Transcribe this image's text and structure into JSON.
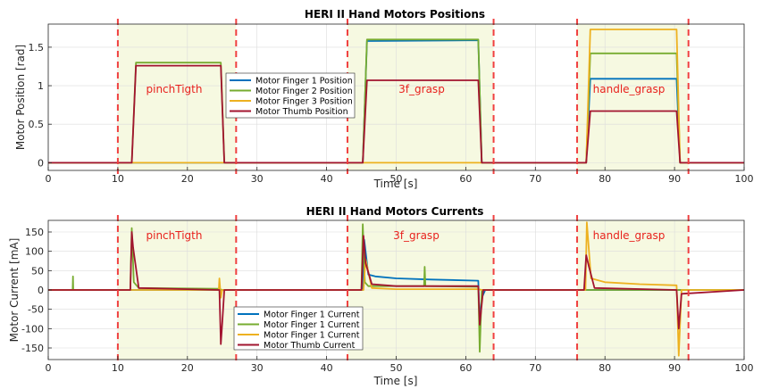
{
  "chart_data": [
    {
      "type": "line",
      "title": "HERI II Hand Motors Positions",
      "xlabel": "Time [s]",
      "ylabel": "Motor Position [rad]",
      "xlim": [
        0,
        100
      ],
      "ylim": [
        -0.1,
        1.8
      ],
      "xticks": [
        "0",
        "10",
        "20",
        "30",
        "40",
        "50",
        "60",
        "70",
        "80",
        "90",
        "100"
      ],
      "yticks": [
        "0",
        "0.5",
        "1",
        "1.5"
      ],
      "ytick_values": [
        0,
        0.5,
        1,
        1.5
      ],
      "grid": true,
      "legend_position": "center-left",
      "phase_regions": [
        {
          "label": "pinchTigth",
          "x_start": 10,
          "x_end": 27
        },
        {
          "label": "3f_grasp",
          "x_start": 43,
          "x_end": 64
        },
        {
          "label": "handle_grasp",
          "x_start": 76,
          "x_end": 92
        }
      ],
      "series": [
        {
          "name": "Motor Finger 1 Position",
          "color": "#0072bd",
          "x": [
            0,
            12,
            12.6,
            24.8,
            25.3,
            45.2,
            45.8,
            61.8,
            62.3,
            77.3,
            77.9,
            90.3,
            90.8,
            100
          ],
          "y": [
            0,
            0,
            0,
            0,
            0,
            0,
            1.58,
            1.59,
            0,
            0,
            1.09,
            1.09,
            0,
            0
          ]
        },
        {
          "name": "Motor Finger 2 Position",
          "color": "#77ac30",
          "x": [
            0,
            12,
            12.6,
            24.8,
            25.3,
            45.2,
            45.8,
            61.8,
            62.3,
            77.3,
            77.9,
            90.3,
            90.8,
            100
          ],
          "y": [
            0,
            0,
            1.3,
            1.3,
            0,
            0,
            1.6,
            1.6,
            0,
            0,
            1.42,
            1.42,
            0,
            0
          ]
        },
        {
          "name": "Motor Finger 3 Position",
          "color": "#edb120",
          "x": [
            0,
            12,
            12.6,
            24.8,
            25.3,
            45.2,
            45.8,
            61.8,
            62.3,
            77.3,
            77.9,
            90.3,
            90.8,
            100
          ],
          "y": [
            0,
            0,
            0,
            0,
            0,
            0,
            0,
            0,
            0,
            0,
            1.73,
            1.73,
            0,
            0
          ]
        },
        {
          "name": "Motor Thumb Position",
          "color": "#a2142f",
          "x": [
            0,
            12,
            12.6,
            24.8,
            25.3,
            45.2,
            45.8,
            61.8,
            62.3,
            77.3,
            77.9,
            90.3,
            90.8,
            100
          ],
          "y": [
            0,
            0,
            1.26,
            1.26,
            0,
            0,
            1.07,
            1.07,
            0,
            0,
            0.67,
            0.67,
            0,
            0
          ]
        }
      ]
    },
    {
      "type": "line",
      "title": "HERI II Hand Motors Currents",
      "xlabel": "Time [s]",
      "ylabel": "Motor Current [mA]",
      "xlim": [
        0,
        100
      ],
      "ylim": [
        -180,
        180
      ],
      "xticks": [
        "0",
        "10",
        "20",
        "30",
        "40",
        "50",
        "60",
        "70",
        "80",
        "90",
        "100"
      ],
      "yticks": [
        "150",
        "100",
        "50",
        "0",
        "-50",
        "-100",
        "-150"
      ],
      "ytick_values": [
        150,
        100,
        50,
        0,
        -50,
        -100,
        -150
      ],
      "grid": true,
      "legend_position": "bottom-left",
      "phase_regions": [
        {
          "label": "pinchTigth",
          "x_start": 10,
          "x_end": 27
        },
        {
          "label": "3f_grasp",
          "x_start": 43,
          "x_end": 64
        },
        {
          "label": "handle_grasp",
          "x_start": 76,
          "x_end": 92
        }
      ],
      "series": [
        {
          "name": "Motor Finger 1 Current",
          "color": "#0072bd",
          "x": [
            0,
            45.2,
            45.4,
            46,
            47,
            50,
            55,
            61.8,
            62,
            62.3,
            62.8,
            100
          ],
          "y": [
            0,
            0,
            130,
            40,
            35,
            30,
            27,
            24,
            -80,
            -20,
            0,
            0
          ]
        },
        {
          "name": "Motor Finger 1 Current",
          "color": "#77ac30",
          "x": [
            0,
            3.5,
            3.55,
            3.6,
            11.8,
            12,
            12.3,
            13,
            24.5,
            25,
            45,
            45.2,
            45.5,
            46,
            54,
            54.1,
            54.2,
            61.8,
            62,
            62.3,
            100
          ],
          "y": [
            0,
            0,
            35,
            0,
            0,
            160,
            20,
            5,
            3,
            0,
            0,
            170,
            20,
            10,
            10,
            60,
            10,
            8,
            -160,
            0,
            0
          ]
        },
        {
          "name": "Motor Finger 1 Current",
          "color": "#edb120",
          "x": [
            0,
            24.5,
            24.6,
            24.8,
            25,
            45.3,
            45.6,
            46.5,
            50,
            61.8,
            62.3,
            77.2,
            77.4,
            78,
            80,
            85,
            90.3,
            90.6,
            91,
            100
          ],
          "y": [
            0,
            0,
            30,
            -20,
            0,
            0,
            80,
            5,
            2,
            2,
            0,
            0,
            175,
            30,
            20,
            15,
            12,
            -170,
            0,
            0
          ]
        },
        {
          "name": "Motor Thumb Current",
          "color": "#a2142f",
          "x": [
            0,
            11.8,
            12,
            12.2,
            13,
            20,
            24.6,
            24.8,
            25,
            25.3,
            45,
            45.3,
            45.6,
            46.5,
            50,
            61.8,
            62,
            62.5,
            77,
            77.3,
            77.7,
            78.5,
            90.3,
            90.6,
            91,
            100
          ],
          "y": [
            0,
            0,
            150,
            110,
            5,
            2,
            0,
            -140,
            -85,
            0,
            0,
            140,
            70,
            15,
            10,
            10,
            -90,
            0,
            0,
            90,
            60,
            5,
            0,
            -100,
            -10,
            0
          ]
        }
      ]
    }
  ]
}
